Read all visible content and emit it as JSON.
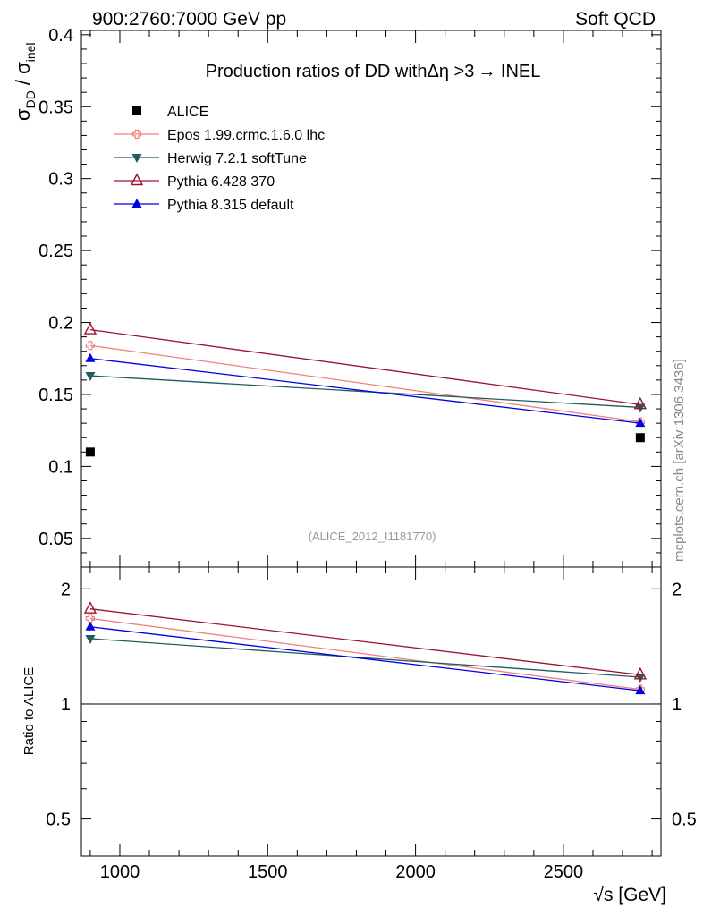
{
  "header": {
    "left": "900:2760:7000 GeV pp",
    "right": "Soft QCD"
  },
  "side_label": "mcplots.cern.ch [arXiv:1306.3436]",
  "analysis_id": "(ALICE_2012_I1181770)",
  "colors": {
    "alice": "#000000",
    "epos": "#f08080",
    "herwig": "#1f5c5c",
    "pythia6": "#a01030",
    "pythia8": "#0000e0"
  },
  "chart_data": [
    {
      "type": "line",
      "panel": "main",
      "title_parts": [
        "Production ratios of DD with",
        "Δη",
        " >3",
        "→",
        " INEL"
      ],
      "ylabel": {
        "sigma": "σ",
        "num_sub": "DD",
        "slash": " / ",
        "den_sub": "inel"
      },
      "xlim": [
        870,
        2830
      ],
      "ylim": [
        0.03,
        0.403
      ],
      "yticks": [
        0.05,
        0.1,
        0.15,
        0.2,
        0.25,
        0.3,
        0.35,
        0.4
      ],
      "ytick_labels": [
        "0.05",
        "0.1",
        "0.15",
        "0.2",
        "0.25",
        "0.3",
        "0.35",
        "0.4"
      ],
      "x": [
        900,
        2760
      ],
      "series": [
        {
          "key": "alice",
          "name": "ALICE",
          "marker": "square",
          "line": false,
          "values": [
            0.11,
            0.12
          ]
        },
        {
          "key": "epos",
          "name": "Epos 1.99.crmc.1.6.0 lhc",
          "marker": "cross",
          "line": true,
          "values": [
            0.184,
            0.131
          ]
        },
        {
          "key": "herwig",
          "name": "Herwig 7.2.1 softTune",
          "marker": "triangle-down",
          "line": true,
          "values": [
            0.163,
            0.141
          ]
        },
        {
          "key": "pythia6",
          "name": "Pythia 6.428 370",
          "marker": "triangle-open",
          "line": true,
          "values": [
            0.195,
            0.143
          ]
        },
        {
          "key": "pythia8",
          "name": "Pythia 8.315 default",
          "marker": "triangle-up",
          "line": true,
          "values": [
            0.175,
            0.13
          ]
        }
      ]
    },
    {
      "type": "line",
      "panel": "ratio",
      "ylabel": "Ratio to ALICE",
      "xlabel": "√s [GeV]",
      "xlim": [
        870,
        2830
      ],
      "ylim": [
        0.4,
        2.28
      ],
      "yscale": "log",
      "yticks": [
        0.5,
        1,
        2
      ],
      "ytick_labels": [
        "0.5",
        "1",
        "2"
      ],
      "xticks": [
        1000,
        1500,
        2000,
        2500
      ],
      "xtick_labels": [
        "1000",
        "1500",
        "2000",
        "2500"
      ],
      "reference": 1,
      "x": [
        900,
        2760
      ],
      "series": [
        {
          "key": "epos",
          "values": [
            1.673,
            1.092
          ]
        },
        {
          "key": "herwig",
          "values": [
            1.482,
            1.175
          ]
        },
        {
          "key": "pythia6",
          "values": [
            1.773,
            1.192
          ]
        },
        {
          "key": "pythia8",
          "values": [
            1.591,
            1.083
          ]
        }
      ]
    }
  ]
}
